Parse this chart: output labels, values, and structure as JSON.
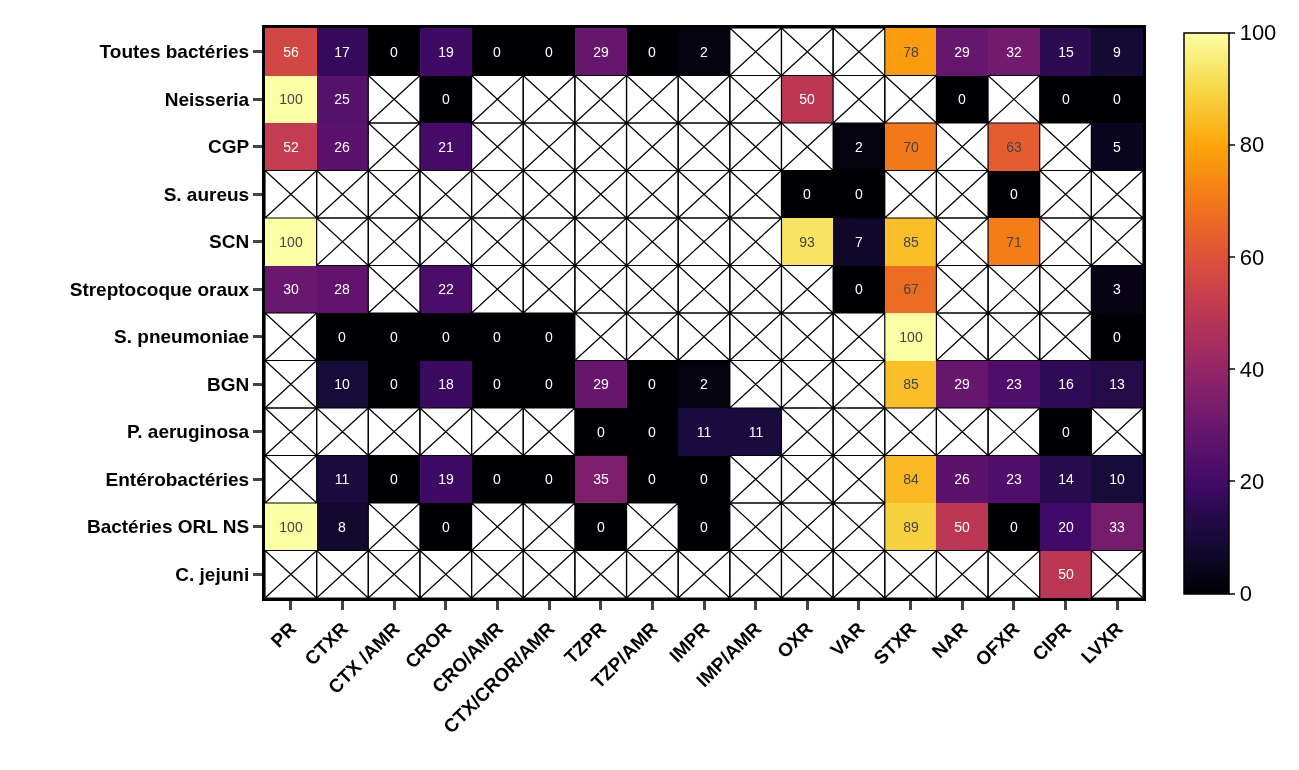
{
  "chart_data": {
    "type": "heatmap",
    "categories": [
      "PR",
      "CTXR",
      "CTX /AMR",
      "CROR",
      "CRO/AMR",
      "CTX/CROR/AMR",
      "TZPR",
      "TZP/AMR",
      "IMPR",
      "IMP/AMR",
      "OXR",
      "VAR",
      "STXR",
      "NAR",
      "OFXR",
      "CIPR",
      "LVXR"
    ],
    "y_categories": [
      "Toutes bactéries",
      "Neisseria",
      "CGP",
      "S. aureus",
      "SCN",
      "Streptocoque oraux",
      "S. pneumoniae",
      "BGN",
      "P. aeruginosa",
      "Entérobactéries",
      "Bactéries ORL NS",
      "C. jejuni"
    ],
    "cells": [
      [
        56,
        17,
        0,
        19,
        0,
        0,
        29,
        0,
        2,
        null,
        null,
        null,
        78,
        29,
        32,
        15,
        9
      ],
      [
        100,
        25,
        null,
        0,
        null,
        null,
        null,
        null,
        null,
        null,
        50,
        null,
        null,
        0,
        null,
        0,
        0
      ],
      [
        52,
        26,
        null,
        21,
        null,
        null,
        null,
        null,
        null,
        null,
        null,
        2,
        70,
        null,
        63,
        null,
        5
      ],
      [
        null,
        null,
        null,
        null,
        null,
        null,
        null,
        null,
        null,
        null,
        0,
        0,
        null,
        null,
        0,
        null,
        null
      ],
      [
        100,
        null,
        null,
        null,
        null,
        null,
        null,
        null,
        null,
        null,
        93,
        7,
        85,
        null,
        71,
        null,
        null
      ],
      [
        30,
        28,
        null,
        22,
        null,
        null,
        null,
        null,
        null,
        null,
        null,
        0,
        67,
        null,
        null,
        null,
        3
      ],
      [
        null,
        0,
        0,
        0,
        0,
        0,
        null,
        null,
        null,
        null,
        null,
        null,
        100,
        null,
        null,
        null,
        0
      ],
      [
        null,
        10,
        0,
        18,
        0,
        0,
        29,
        0,
        2,
        null,
        null,
        null,
        85,
        29,
        23,
        16,
        13
      ],
      [
        null,
        null,
        null,
        null,
        null,
        null,
        0,
        0,
        11,
        11,
        null,
        null,
        null,
        null,
        null,
        0,
        null
      ],
      [
        null,
        11,
        0,
        19,
        0,
        0,
        35,
        0,
        0,
        null,
        null,
        null,
        84,
        26,
        23,
        14,
        10
      ],
      [
        100,
        8,
        null,
        0,
        null,
        null,
        0,
        null,
        0,
        null,
        null,
        null,
        89,
        50,
        0,
        20,
        33
      ],
      [
        null,
        null,
        null,
        null,
        null,
        null,
        null,
        null,
        null,
        null,
        null,
        null,
        null,
        null,
        null,
        50,
        null
      ]
    ],
    "clim": [
      0,
      100
    ],
    "cticks": [
      0,
      20,
      40,
      60,
      80,
      100
    ],
    "data_labels": true
  }
}
